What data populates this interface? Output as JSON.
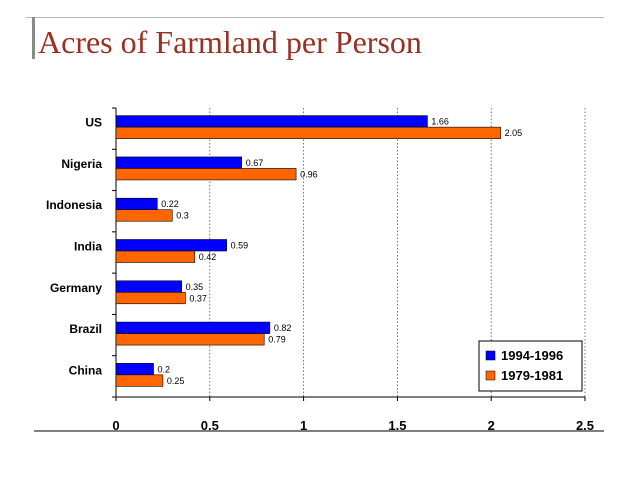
{
  "slide": {
    "title": "Acres of Farmland per Person"
  },
  "chart_data": {
    "type": "bar",
    "orientation": "horizontal",
    "title": "Acres of Farmland per Person",
    "categories": [
      "US",
      "Nigeria",
      "Indonesia",
      "India",
      "Germany",
      "Brazil",
      "China"
    ],
    "series": [
      {
        "name": "1994-1996",
        "color": "#0000ff",
        "values": [
          1.66,
          0.67,
          0.22,
          0.59,
          0.35,
          0.82,
          0.2
        ],
        "labels": [
          "1.66",
          "0.67",
          "0.22",
          "0.59",
          "0.35",
          "0.82",
          "0.2"
        ]
      },
      {
        "name": "1979-1981",
        "color": "#ff6600",
        "values": [
          2.05,
          0.96,
          0.3,
          0.42,
          0.37,
          0.79,
          0.25
        ],
        "labels": [
          "2.05",
          "0.96",
          "0.3",
          "0.42",
          "0.37",
          "0.79",
          "0.25"
        ]
      }
    ],
    "xlim": [
      0,
      2.5
    ],
    "xticks": [
      0,
      0.5,
      1,
      1.5,
      2,
      2.5
    ],
    "xtick_labels": [
      "0",
      "0.5",
      "1",
      "1.5",
      "2",
      "2.5"
    ],
    "xlabel": "",
    "ylabel": "",
    "grid": "vertical dotted",
    "legend_position": "bottom-right"
  }
}
